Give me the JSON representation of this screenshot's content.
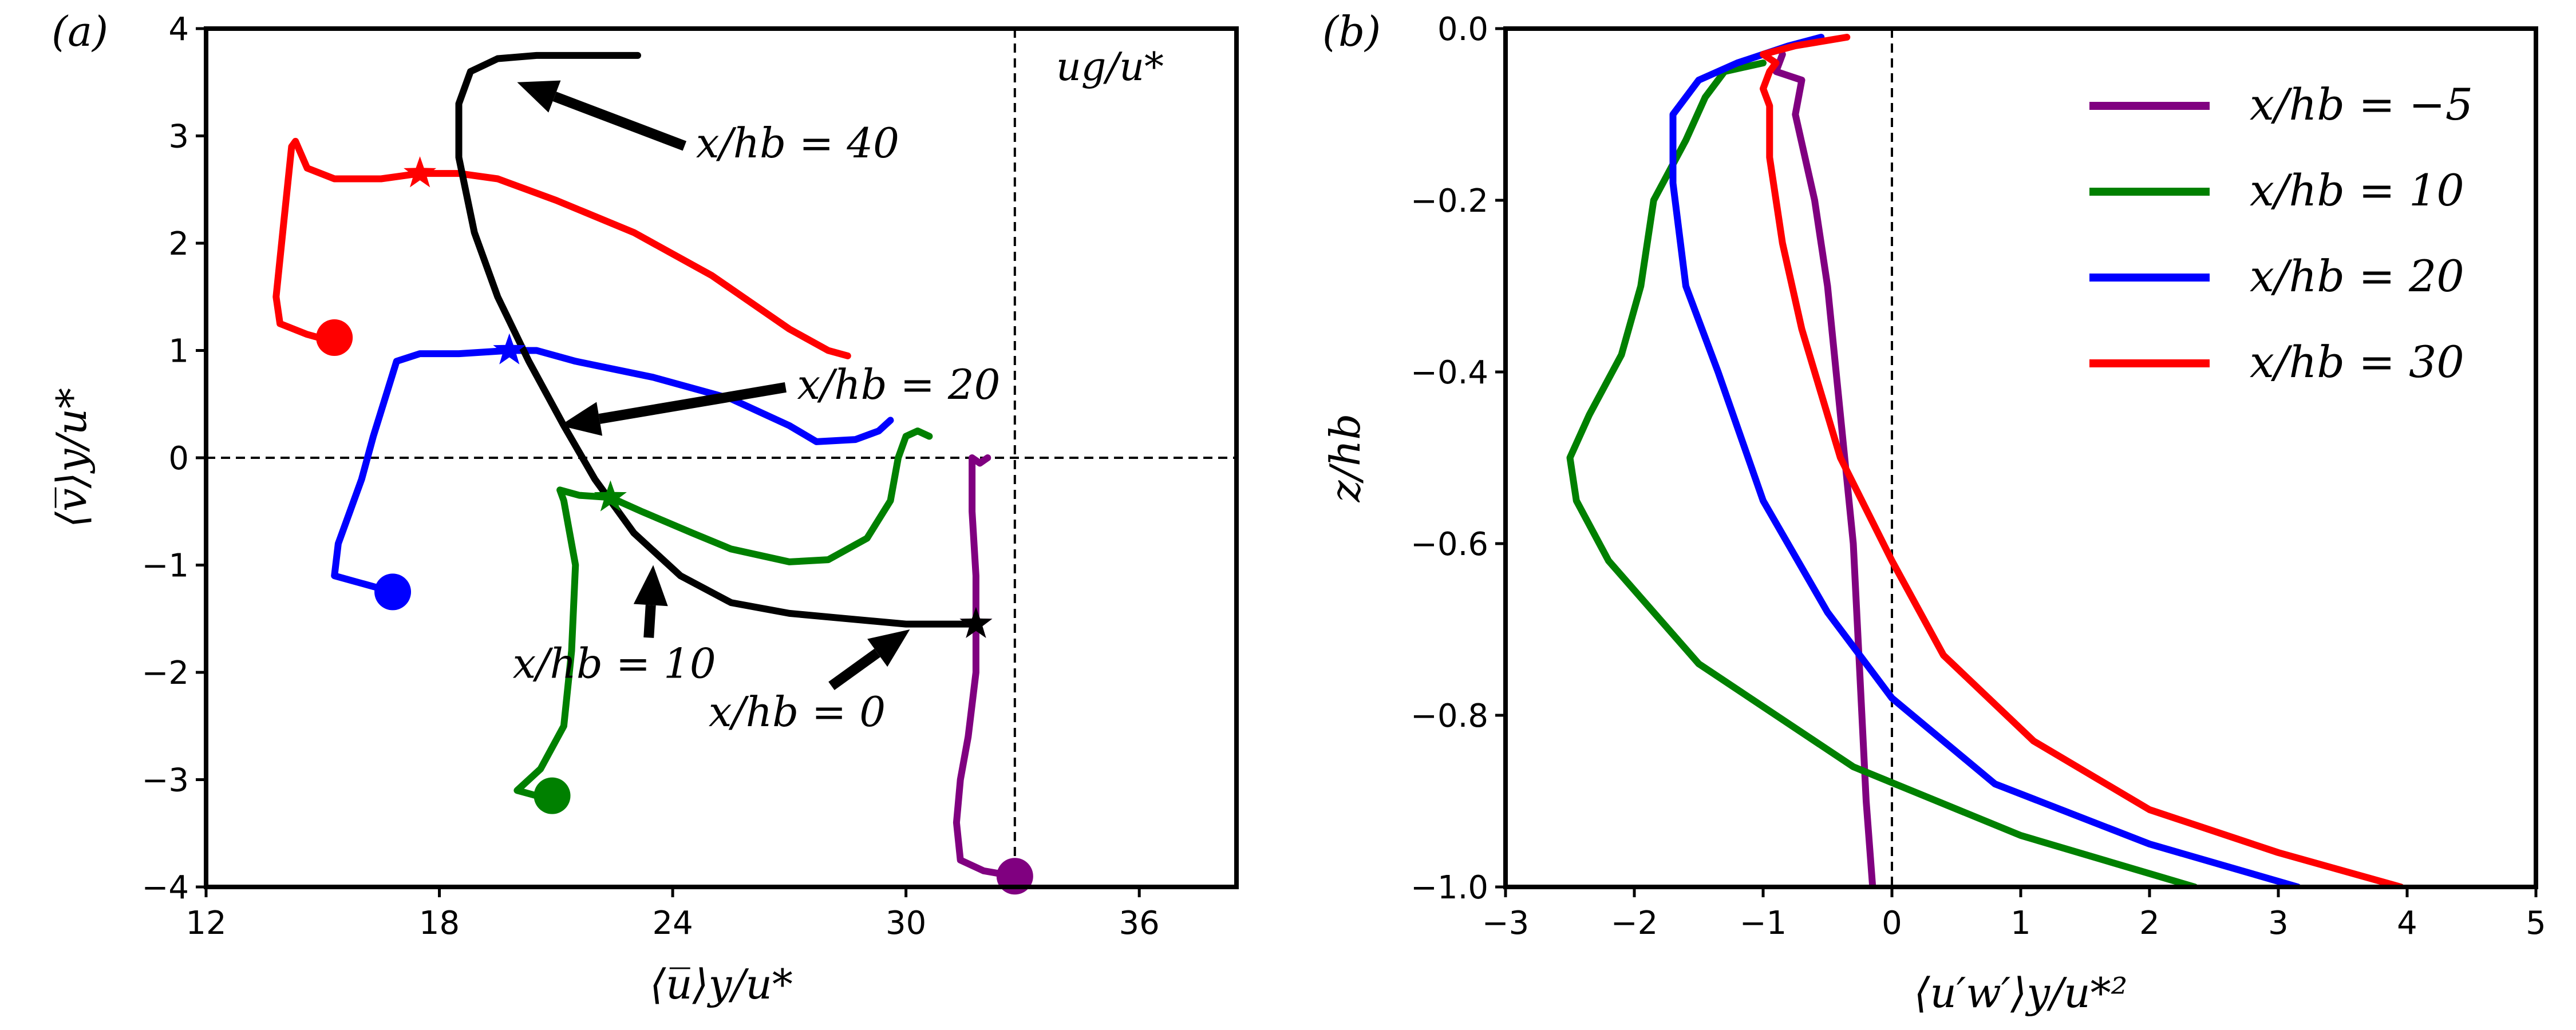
{
  "colors": {
    "purple": "#800080",
    "green": "#008000",
    "blue": "#0000ff",
    "red": "#ff0000",
    "black": "#000000"
  },
  "chart_data": [
    {
      "type": "line",
      "panel_label": "(a)",
      "xlabel": "⟨u̅⟩y/u*",
      "ylabel": "⟨v̅⟩y/u*",
      "xlim": [
        12,
        38.5
      ],
      "ylim": [
        -4,
        4
      ],
      "xticks": [
        "12",
        "18",
        "24",
        "30",
        "36"
      ],
      "yticks": [
        "4",
        "3",
        "2",
        "1",
        "0",
        "−1",
        "−2",
        "−3",
        "−4"
      ],
      "ref_lines": {
        "vertical_x": 32.8,
        "vertical_label": "ug/u*",
        "horizontal_y": 0
      },
      "series": [
        {
          "name": "x/hb = −5",
          "color": "purple",
          "points": [
            [
              32.8,
              -3.9
            ],
            [
              32.0,
              -3.85
            ],
            [
              31.4,
              -3.75
            ],
            [
              31.3,
              -3.4
            ],
            [
              31.4,
              -3.0
            ],
            [
              31.6,
              -2.6
            ],
            [
              31.8,
              -2.0
            ],
            [
              31.8,
              -1.55
            ],
            [
              31.8,
              -1.1
            ],
            [
              31.7,
              -0.5
            ],
            [
              31.7,
              0.0
            ],
            [
              31.9,
              -0.05
            ],
            [
              32.1,
              0.0
            ]
          ],
          "star": [
            31.8,
            -1.55
          ],
          "dot": [
            32.8,
            -3.9
          ]
        },
        {
          "name": "x/hb = 10",
          "color": "green",
          "points": [
            [
              20.5,
              -3.15
            ],
            [
              20.0,
              -3.1
            ],
            [
              20.6,
              -2.9
            ],
            [
              21.2,
              -2.5
            ],
            [
              21.4,
              -1.8
            ],
            [
              21.5,
              -1.0
            ],
            [
              21.2,
              -0.4
            ],
            [
              21.1,
              -0.3
            ],
            [
              21.6,
              -0.35
            ],
            [
              22.4,
              -0.37
            ],
            [
              23.2,
              -0.5
            ],
            [
              24.5,
              -0.7
            ],
            [
              25.5,
              -0.85
            ],
            [
              27.0,
              -0.97
            ],
            [
              28.0,
              -0.95
            ],
            [
              29.0,
              -0.75
            ],
            [
              29.6,
              -0.4
            ],
            [
              29.8,
              0.0
            ],
            [
              30.0,
              0.2
            ],
            [
              30.3,
              0.25
            ],
            [
              30.6,
              0.2
            ]
          ],
          "star": [
            22.4,
            -0.37
          ],
          "dot": [
            20.9,
            -3.15
          ]
        },
        {
          "name": "x/hb = 20",
          "color": "blue",
          "points": [
            [
              16.8,
              -1.25
            ],
            [
              15.8,
              -1.15
            ],
            [
              15.3,
              -1.1
            ],
            [
              15.4,
              -0.8
            ],
            [
              15.7,
              -0.5
            ],
            [
              16.0,
              -0.2
            ],
            [
              16.3,
              0.2
            ],
            [
              16.6,
              0.55
            ],
            [
              16.9,
              0.9
            ],
            [
              17.5,
              0.97
            ],
            [
              18.5,
              0.97
            ],
            [
              19.8,
              1.0
            ],
            [
              20.5,
              1.0
            ],
            [
              21.5,
              0.9
            ],
            [
              23.5,
              0.75
            ],
            [
              25.5,
              0.55
            ],
            [
              27.0,
              0.3
            ],
            [
              27.7,
              0.15
            ],
            [
              28.7,
              0.17
            ],
            [
              29.3,
              0.25
            ],
            [
              29.6,
              0.35
            ]
          ],
          "star": [
            19.8,
            1.0
          ],
          "dot": [
            16.8,
            -1.25
          ]
        },
        {
          "name": "x/hb = 30",
          "color": "red",
          "points": [
            [
              15.1,
              1.1
            ],
            [
              14.6,
              1.15
            ],
            [
              13.9,
              1.25
            ],
            [
              13.8,
              1.5
            ],
            [
              14.0,
              2.2
            ],
            [
              14.2,
              2.9
            ],
            [
              14.3,
              2.95
            ],
            [
              14.6,
              2.7
            ],
            [
              15.3,
              2.6
            ],
            [
              16.5,
              2.6
            ],
            [
              17.5,
              2.65
            ],
            [
              18.5,
              2.65
            ],
            [
              19.5,
              2.6
            ],
            [
              21.0,
              2.4
            ],
            [
              23.0,
              2.1
            ],
            [
              25.0,
              1.7
            ],
            [
              27.0,
              1.2
            ],
            [
              28.0,
              1.0
            ],
            [
              28.5,
              0.95
            ]
          ],
          "star": [
            17.5,
            2.65
          ],
          "dot": [
            15.3,
            1.12
          ]
        },
        {
          "name": "x/hb = 0",
          "color": "black",
          "points": [
            [
              31.8,
              -1.55
            ],
            [
              31.0,
              -1.55
            ],
            [
              30.0,
              -1.55
            ],
            [
              28.5,
              -1.5
            ],
            [
              27.0,
              -1.45
            ],
            [
              25.5,
              -1.35
            ],
            [
              24.2,
              -1.1
            ],
            [
              23.0,
              -0.7
            ],
            [
              22.0,
              -0.2
            ],
            [
              21.2,
              0.3
            ],
            [
              20.3,
              0.9
            ],
            [
              19.5,
              1.5
            ],
            [
              18.9,
              2.1
            ],
            [
              18.5,
              2.8
            ],
            [
              18.5,
              3.3
            ],
            [
              18.8,
              3.6
            ],
            [
              19.5,
              3.72
            ],
            [
              20.5,
              3.75
            ],
            [
              22.0,
              3.75
            ],
            [
              23.1,
              3.75
            ]
          ],
          "star": [
            31.8,
            -1.55
          ]
        }
      ],
      "annotations": [
        {
          "text": "x/hb = 40",
          "xy": [
            20.0,
            3.5
          ],
          "xytext": [
            24.6,
            2.8
          ]
        },
        {
          "text": "x/hb = 20",
          "xy": [
            21.1,
            0.3
          ],
          "xytext": [
            27.2,
            0.55
          ]
        },
        {
          "text": "x/hb = 10",
          "xy": [
            23.5,
            -1.0
          ],
          "xytext": [
            22.5,
            -2.05
          ]
        },
        {
          "text": "x/hb = 0",
          "xy": [
            30.1,
            -1.6
          ],
          "xytext": [
            27.2,
            -2.5
          ]
        }
      ]
    },
    {
      "type": "line",
      "panel_label": "(b)",
      "xlabel": "⟨u′w′⟩y/u*²",
      "ylabel": "z/hb",
      "xlim": [
        -3,
        5
      ],
      "ylim": [
        -1.0,
        0.0
      ],
      "xticks": [
        "−3",
        "−2",
        "−1",
        "0",
        "1",
        "2",
        "3",
        "4",
        "5"
      ],
      "yticks": [
        "0.0",
        "−0.2",
        "−0.4",
        "−0.6",
        "−0.8",
        "−1.0"
      ],
      "ref_lines": {
        "vertical_x": 0
      },
      "legend": {
        "position": "top-right",
        "entries": [
          {
            "label": "x/hb = −5",
            "color": "purple"
          },
          {
            "label": "x/hb = 10",
            "color": "green"
          },
          {
            "label": "x/hb = 20",
            "color": "blue"
          },
          {
            "label": "x/hb = 30",
            "color": "red"
          }
        ]
      },
      "series": [
        {
          "name": "x/hb = −5",
          "color": "purple",
          "points": [
            [
              -0.15,
              -1.0
            ],
            [
              -0.2,
              -0.9
            ],
            [
              -0.25,
              -0.75
            ],
            [
              -0.3,
              -0.6
            ],
            [
              -0.4,
              -0.45
            ],
            [
              -0.5,
              -0.3
            ],
            [
              -0.6,
              -0.2
            ],
            [
              -0.75,
              -0.1
            ],
            [
              -0.7,
              -0.06
            ],
            [
              -0.9,
              -0.05
            ],
            [
              -0.85,
              -0.03
            ]
          ]
        },
        {
          "name": "x/hb = 10",
          "color": "green",
          "points": [
            [
              2.35,
              -1.0
            ],
            [
              1.0,
              -0.94
            ],
            [
              -0.3,
              -0.86
            ],
            [
              -1.5,
              -0.74
            ],
            [
              -2.2,
              -0.62
            ],
            [
              -2.45,
              -0.55
            ],
            [
              -2.5,
              -0.5
            ],
            [
              -2.35,
              -0.45
            ],
            [
              -2.1,
              -0.38
            ],
            [
              -1.95,
              -0.3
            ],
            [
              -1.85,
              -0.2
            ],
            [
              -1.6,
              -0.13
            ],
            [
              -1.45,
              -0.08
            ],
            [
              -1.3,
              -0.05
            ],
            [
              -1.0,
              -0.04
            ]
          ]
        },
        {
          "name": "x/hb = 20",
          "color": "blue",
          "points": [
            [
              3.15,
              -1.0
            ],
            [
              2.0,
              -0.95
            ],
            [
              0.8,
              -0.88
            ],
            [
              0.0,
              -0.78
            ],
            [
              -0.5,
              -0.68
            ],
            [
              -1.0,
              -0.55
            ],
            [
              -1.35,
              -0.4
            ],
            [
              -1.6,
              -0.3
            ],
            [
              -1.7,
              -0.18
            ],
            [
              -1.7,
              -0.1
            ],
            [
              -1.5,
              -0.06
            ],
            [
              -1.2,
              -0.04
            ],
            [
              -0.8,
              -0.02
            ],
            [
              -0.55,
              -0.01
            ]
          ]
        },
        {
          "name": "x/hb = 30",
          "color": "red",
          "points": [
            [
              3.95,
              -1.0
            ],
            [
              3.0,
              -0.96
            ],
            [
              2.0,
              -0.91
            ],
            [
              1.1,
              -0.83
            ],
            [
              0.4,
              -0.73
            ],
            [
              0.0,
              -0.62
            ],
            [
              -0.4,
              -0.5
            ],
            [
              -0.7,
              -0.35
            ],
            [
              -0.85,
              -0.25
            ],
            [
              -0.95,
              -0.15
            ],
            [
              -0.95,
              -0.09
            ],
            [
              -1.0,
              -0.07
            ],
            [
              -0.95,
              -0.05
            ],
            [
              -0.9,
              -0.04
            ],
            [
              -1.0,
              -0.03
            ],
            [
              -0.75,
              -0.02
            ],
            [
              -0.35,
              -0.01
            ]
          ]
        }
      ]
    }
  ]
}
